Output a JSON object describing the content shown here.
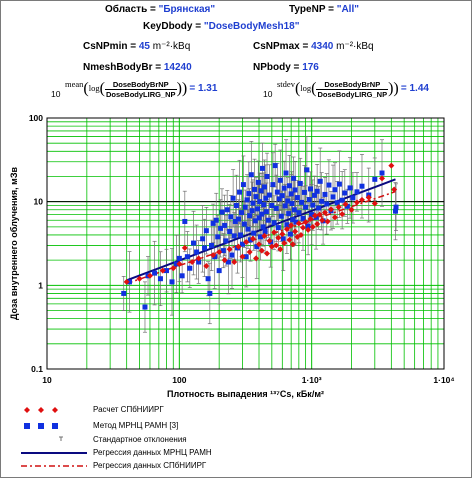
{
  "header": {
    "region_label": "Область = ",
    "region_value": "\"Брянская\"",
    "typenp_label": "TypeNP = ",
    "typenp_value": "\"All\"",
    "keydbody_label": "KeyDbody = ",
    "keydbody_value": "\"DoseBodyMesh18\"",
    "csnpmin_label": "CsNPmin = ",
    "csnpmin_value": "45",
    "csnpmin_unit": " m⁻²·kBq",
    "csnpmax_label": "CsNPmax = ",
    "csnpmax_value": "4340",
    "csnpmax_unit": " m⁻²·kBq",
    "nmesh_label": "NmeshBodyBr = ",
    "nmesh_value": "14240",
    "npbody_label": "NPbody = ",
    "npbody_value": "176",
    "formula1_prefix": "mean",
    "formula1_base": "10",
    "formula1_num": "DoseBodyBrNP",
    "formula1_den": "DoseBodyLIRG_NP",
    "formula1_result": "= 1.31",
    "formula2_prefix": "stdev",
    "formula2_base": "10",
    "formula2_num": "DoseBodyBrNP",
    "formula2_den": "DoseBodyLIRG_NP",
    "formula2_result": "= 1.44",
    "log_word": "log"
  },
  "legend": {
    "items": [
      {
        "label": "Расчет СПбНИИРГ",
        "kind": "red-diamond"
      },
      {
        "label": "Метод МРНЦ РАМН [3]",
        "kind": "blue-square"
      },
      {
        "label": "Стандартное отклонения",
        "kind": "errorbar"
      },
      {
        "label": "Регрессия данных МРНЦ РАМН",
        "kind": "navy-line"
      },
      {
        "label": "Регрессия данных СПбНИИРГ",
        "kind": "red-dashdot"
      }
    ]
  },
  "colors": {
    "grid": "#00c000",
    "blue_points": "#1030e0",
    "red_points": "#e01010",
    "navy_line": "#0a0a80",
    "red_line": "#d01010",
    "errorbar": "#707070",
    "value_text": "#1f3fd0"
  },
  "chart_data": {
    "type": "scatter",
    "xscale": "log",
    "yscale": "log",
    "xlim": [
      10,
      10000
    ],
    "ylim": [
      0.1,
      100
    ],
    "xlabel": "Плотность выпадения ¹³⁷Cs, кБк/м²",
    "ylabel": "Доза внутреннего облучения, мЗв",
    "xticks": [
      {
        "value": 10,
        "label": "10"
      },
      {
        "value": 100,
        "label": "100"
      },
      {
        "value": 1000,
        "label": "1·10³"
      },
      {
        "value": 10000,
        "label": "1·10⁴"
      }
    ],
    "yticks": [
      {
        "value": 0.1,
        "label": "0.1"
      },
      {
        "value": 1,
        "label": "1"
      },
      {
        "value": 10,
        "label": "10"
      },
      {
        "value": 100,
        "label": "100"
      }
    ],
    "grid": true,
    "series": [
      {
        "name": "Метод МРНЦ РАМН [3]",
        "marker": "square",
        "points": [
          [
            38,
            0.8
          ],
          [
            42,
            1.1
          ],
          [
            55,
            0.55
          ],
          [
            58,
            1.3
          ],
          [
            65,
            1.4
          ],
          [
            72,
            1.2
          ],
          [
            80,
            1.5
          ],
          [
            88,
            1.1
          ],
          [
            95,
            1.8
          ],
          [
            100,
            2.1
          ],
          [
            105,
            1.3
          ],
          [
            110,
            5.8
          ],
          [
            115,
            2.2
          ],
          [
            120,
            1.6
          ],
          [
            128,
            3.2
          ],
          [
            135,
            2.5
          ],
          [
            140,
            1.9
          ],
          [
            150,
            3.6
          ],
          [
            155,
            2.8
          ],
          [
            160,
            4.5
          ],
          [
            165,
            1.2
          ],
          [
            170,
            0.8
          ],
          [
            175,
            3.0
          ],
          [
            180,
            5.5
          ],
          [
            185,
            2.2
          ],
          [
            190,
            6.0
          ],
          [
            195,
            3.8
          ],
          [
            200,
            1.5
          ],
          [
            205,
            4.8
          ],
          [
            210,
            7.5
          ],
          [
            215,
            2.6
          ],
          [
            220,
            5.2
          ],
          [
            225,
            3.4
          ],
          [
            230,
            8.0
          ],
          [
            235,
            1.9
          ],
          [
            240,
            4.4
          ],
          [
            245,
            6.6
          ],
          [
            250,
            2.3
          ],
          [
            255,
            11.0
          ],
          [
            260,
            3.9
          ],
          [
            265,
            5.8
          ],
          [
            270,
            9.0
          ],
          [
            275,
            2.8
          ],
          [
            280,
            6.2
          ],
          [
            285,
            13.0
          ],
          [
            290,
            4.0
          ],
          [
            295,
            7.4
          ],
          [
            300,
            3.1
          ],
          [
            305,
            16.0
          ],
          [
            310,
            5.4
          ],
          [
            315,
            8.6
          ],
          [
            320,
            2.2
          ],
          [
            325,
            10.5
          ],
          [
            330,
            4.7
          ],
          [
            335,
            12.5
          ],
          [
            340,
            6.8
          ],
          [
            345,
            3.5
          ],
          [
            350,
            21.0
          ],
          [
            355,
            7.8
          ],
          [
            360,
            9.6
          ],
          [
            365,
            4.2
          ],
          [
            370,
            14.0
          ],
          [
            375,
            5.9
          ],
          [
            380,
            11.5
          ],
          [
            385,
            2.9
          ],
          [
            390,
            8.2
          ],
          [
            395,
            17.0
          ],
          [
            400,
            6.4
          ],
          [
            405,
            10.0
          ],
          [
            410,
            3.8
          ],
          [
            415,
            13.5
          ],
          [
            420,
            7.1
          ],
          [
            425,
            25.0
          ],
          [
            430,
            5.0
          ],
          [
            435,
            9.2
          ],
          [
            440,
            15.0
          ],
          [
            445,
            4.4
          ],
          [
            450,
            11.0
          ],
          [
            455,
            7.6
          ],
          [
            460,
            20.0
          ],
          [
            470,
            6.0
          ],
          [
            480,
            12.0
          ],
          [
            490,
            3.3
          ],
          [
            500,
            9.0
          ],
          [
            510,
            16.0
          ],
          [
            520,
            5.6
          ],
          [
            530,
            27.0
          ],
          [
            540,
            8.3
          ],
          [
            550,
            13.0
          ],
          [
            560,
            4.9
          ],
          [
            570,
            10.8
          ],
          [
            580,
            18.0
          ],
          [
            590,
            6.7
          ],
          [
            600,
            11.8
          ],
          [
            610,
            3.6
          ],
          [
            620,
            14.5
          ],
          [
            630,
            8.9
          ],
          [
            640,
            22.0
          ],
          [
            650,
            5.3
          ],
          [
            660,
            10.2
          ],
          [
            670,
            7.2
          ],
          [
            680,
            15.5
          ],
          [
            690,
            4.1
          ],
          [
            700,
            12.4
          ],
          [
            710,
            9.5
          ],
          [
            720,
            6.1
          ],
          [
            730,
            19.0
          ],
          [
            740,
            8.0
          ],
          [
            750,
            13.8
          ],
          [
            760,
            5.7
          ],
          [
            780,
            11.2
          ],
          [
            800,
            7.4
          ],
          [
            820,
            16.5
          ],
          [
            840,
            9.8
          ],
          [
            860,
            6.3
          ],
          [
            880,
            12.9
          ],
          [
            900,
            8.6
          ],
          [
            920,
            24.0
          ],
          [
            940,
            5.1
          ],
          [
            960,
            10.6
          ],
          [
            980,
            14.2
          ],
          [
            1000,
            7.0
          ],
          [
            1020,
            9.1
          ],
          [
            1050,
            11.9
          ],
          [
            1080,
            6.5
          ],
          [
            1100,
            13.3
          ],
          [
            1130,
            8.4
          ],
          [
            1160,
            17.5
          ],
          [
            1190,
            10.1
          ],
          [
            1220,
            5.9
          ],
          [
            1260,
            12.2
          ],
          [
            1300,
            9.4
          ],
          [
            1350,
            15.8
          ],
          [
            1400,
            7.8
          ],
          [
            1450,
            11.4
          ],
          [
            1500,
            13.9
          ],
          [
            1560,
            9.7
          ],
          [
            1620,
            16.2
          ],
          [
            1700,
            10.4
          ],
          [
            1780,
            12.7
          ],
          [
            1860,
            8.8
          ],
          [
            1950,
            14.6
          ],
          [
            2050,
            11.1
          ],
          [
            2200,
            13.1
          ],
          [
            2400,
            15.3
          ],
          [
            2700,
            12.0
          ],
          [
            3000,
            18.5
          ],
          [
            3400,
            22.0
          ],
          [
            4300,
            7.7
          ],
          [
            4340,
            8.6
          ]
        ]
      },
      {
        "name": "Расчет СПбНИИРГ",
        "marker": "diamond",
        "points": [
          [
            40,
            1.1
          ],
          [
            50,
            1.2
          ],
          [
            60,
            1.3
          ],
          [
            75,
            1.5
          ],
          [
            90,
            1.6
          ],
          [
            100,
            1.8
          ],
          [
            110,
            2.8
          ],
          [
            125,
            1.9
          ],
          [
            140,
            2.1
          ],
          [
            160,
            1.7
          ],
          [
            180,
            2.3
          ],
          [
            200,
            2.5
          ],
          [
            220,
            2.0
          ],
          [
            240,
            2.7
          ],
          [
            260,
            1.9
          ],
          [
            280,
            2.9
          ],
          [
            300,
            2.2
          ],
          [
            320,
            3.3
          ],
          [
            340,
            2.5
          ],
          [
            360,
            3.6
          ],
          [
            380,
            2.1
          ],
          [
            400,
            3.1
          ],
          [
            420,
            2.6
          ],
          [
            440,
            3.9
          ],
          [
            460,
            2.4
          ],
          [
            480,
            3.4
          ],
          [
            500,
            2.9
          ],
          [
            520,
            4.3
          ],
          [
            540,
            3.0
          ],
          [
            560,
            3.7
          ],
          [
            580,
            2.7
          ],
          [
            600,
            4.1
          ],
          [
            620,
            3.2
          ],
          [
            650,
            4.7
          ],
          [
            680,
            3.5
          ],
          [
            700,
            5.2
          ],
          [
            720,
            3.1
          ],
          [
            750,
            4.4
          ],
          [
            780,
            3.8
          ],
          [
            800,
            5.5
          ],
          [
            830,
            4.0
          ],
          [
            860,
            4.9
          ],
          [
            900,
            5.7
          ],
          [
            940,
            4.6
          ],
          [
            980,
            6.2
          ],
          [
            1020,
            5.0
          ],
          [
            1060,
            6.8
          ],
          [
            1100,
            5.4
          ],
          [
            1150,
            7.0
          ],
          [
            1200,
            6.0
          ],
          [
            1260,
            7.4
          ],
          [
            1320,
            5.8
          ],
          [
            1400,
            8.1
          ],
          [
            1500,
            6.5
          ],
          [
            1600,
            8.6
          ],
          [
            1700,
            7.1
          ],
          [
            1800,
            9.3
          ],
          [
            2000,
            8.0
          ],
          [
            2200,
            9.8
          ],
          [
            2400,
            10.5
          ],
          [
            2700,
            11.2
          ],
          [
            3000,
            9.5
          ],
          [
            3400,
            19.0
          ],
          [
            4000,
            27.0
          ],
          [
            4200,
            14.0
          ]
        ]
      }
    ],
    "regressions": [
      {
        "name": "Регрессия данных МРНЦ РАМН",
        "from": [
          40,
          1.15
        ],
        "to": [
          4300,
          18.5
        ],
        "style": "solid"
      },
      {
        "name": "Регрессия данных СПбНИИРГ",
        "from": [
          40,
          1.05
        ],
        "to": [
          4300,
          13.2
        ],
        "style": "dashdot"
      }
    ]
  }
}
